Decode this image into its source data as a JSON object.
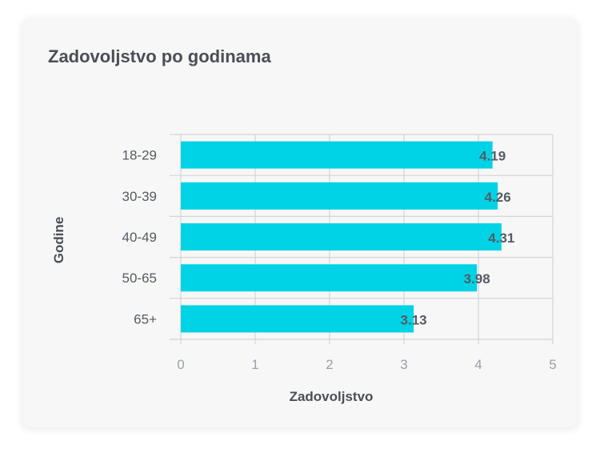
{
  "card": {
    "title": "Zadovoljstvo po godinama"
  },
  "chart_data": {
    "type": "bar",
    "orientation": "horizontal",
    "categories": [
      "18-29",
      "30-39",
      "40-49",
      "50-65",
      "65+"
    ],
    "values": [
      4.19,
      4.26,
      4.31,
      3.98,
      3.13
    ],
    "value_labels": [
      "4.19",
      "4.26",
      "4.31",
      "3.98",
      "3.13"
    ],
    "xlabel": "Zadovoljstvo",
    "ylabel": "Godine",
    "xlim": [
      0,
      5
    ],
    "x_ticks": [
      "0",
      "1",
      "2",
      "3",
      "4",
      "5"
    ],
    "grid": true,
    "bar_color": "#00d3e6",
    "grid_color": "#d4d4d4"
  }
}
